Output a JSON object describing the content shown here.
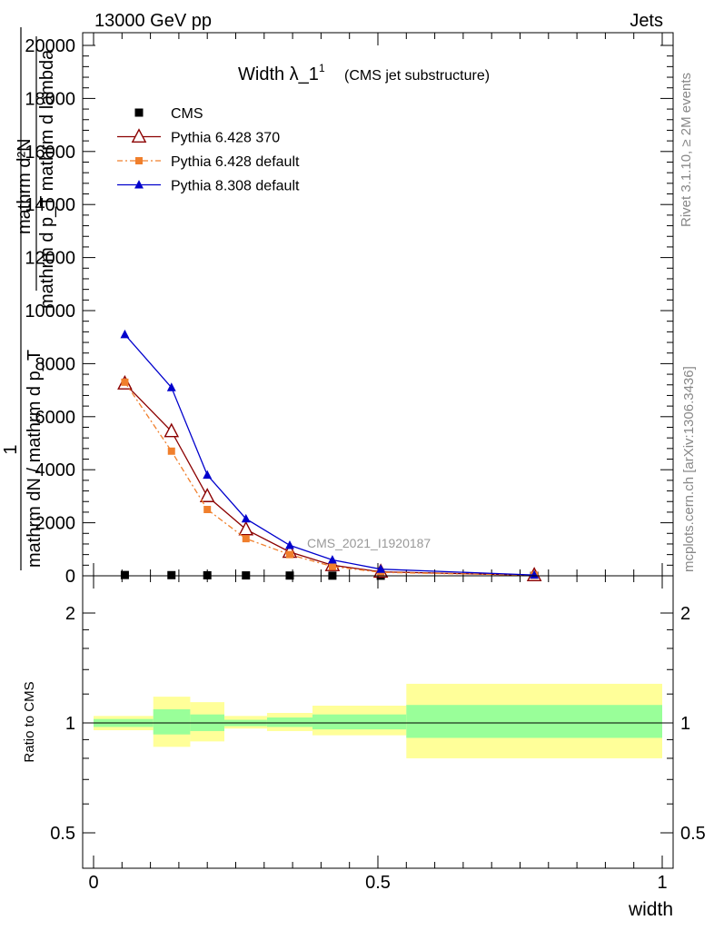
{
  "header": {
    "left": "13000 GeV pp",
    "right": "Jets"
  },
  "side_labels": {
    "rivet": "Rivet 3.1.10, ≥ 2M events",
    "mcplots": "mcplots.cern.ch [arXiv:1306.3436]"
  },
  "chart_data": [
    {
      "type": "line",
      "title": "Width λ_1",
      "title_superscript": "1",
      "subtitle": "(CMS jet substructure)",
      "ylabel_numerator": "mathrm d²N",
      "ylabel_denominator": "mathrm d p_T mathrm d lambda",
      "ylabel_prefix_numerator": "1",
      "ylabel_prefix_denominator": "mathrm dN / mathrm d p_T",
      "watermark": "CMS_2021_I1920187",
      "xlim": [
        0,
        1
      ],
      "ylim": [
        0,
        20000
      ],
      "y_ticks": [
        0,
        2000,
        4000,
        6000,
        8000,
        10000,
        12000,
        14000,
        16000,
        18000,
        20000
      ],
      "y_tick_labels": [
        "0",
        "2000",
        "4000",
        "6000",
        "8000",
        "10000",
        "12000",
        "14000",
        "16000",
        "18000",
        "20000"
      ],
      "legend_position": "top-left",
      "series": [
        {
          "name": "CMS",
          "marker": "square",
          "color": "#000000",
          "x": [
            0.055,
            0.137,
            0.2,
            0.268,
            0.345,
            0.42,
            0.505,
            0.775
          ],
          "y": [
            30,
            25,
            20,
            15,
            10,
            6,
            3,
            1
          ]
        },
        {
          "name": "Pythia 6.428 370",
          "marker": "open-triangle",
          "color": "#8b0000",
          "line": "solid",
          "x": [
            0.055,
            0.137,
            0.2,
            0.268,
            0.345,
            0.42,
            0.505,
            0.775
          ],
          "y": [
            7250,
            5450,
            3000,
            1750,
            900,
            400,
            150,
            20
          ]
        },
        {
          "name": "Pythia 6.428 default",
          "marker": "square",
          "color": "#f07f2c",
          "line": "dashdot",
          "x": [
            0.055,
            0.137,
            0.2,
            0.268,
            0.345,
            0.42,
            0.505,
            0.775
          ],
          "y": [
            7300,
            4700,
            2500,
            1400,
            800,
            350,
            130,
            20
          ]
        },
        {
          "name": "Pythia 8.308 default",
          "marker": "triangle",
          "color": "#0000cc",
          "line": "solid",
          "x": [
            0.055,
            0.137,
            0.2,
            0.268,
            0.345,
            0.42,
            0.505,
            0.775
          ],
          "y": [
            9100,
            7100,
            3800,
            2150,
            1150,
            600,
            250,
            30
          ]
        }
      ]
    },
    {
      "type": "area",
      "ylabel": "Ratio to CMS",
      "xlabel": "width",
      "xlim": [
        0,
        1
      ],
      "ylim": [
        0.4,
        2.3
      ],
      "y_scale": "log",
      "y_ticks": [
        0.5,
        1,
        2
      ],
      "y_tick_labels": [
        "0.5",
        "1",
        "2"
      ],
      "x_ticks": [
        0,
        0.5,
        1
      ],
      "x_tick_labels": [
        "0",
        "0.5",
        "1"
      ],
      "band_colors": {
        "inner": "#99ff99",
        "outer": "#ffff99"
      },
      "bins": [
        {
          "x_low": 0.0,
          "x_high": 0.105,
          "inner": [
            0.975,
            1.025
          ],
          "outer": [
            0.955,
            1.045
          ]
        },
        {
          "x_low": 0.105,
          "x_high": 0.17,
          "inner": [
            0.93,
            1.09
          ],
          "outer": [
            0.86,
            1.18
          ]
        },
        {
          "x_low": 0.17,
          "x_high": 0.23,
          "inner": [
            0.95,
            1.055
          ],
          "outer": [
            0.89,
            1.14
          ]
        },
        {
          "x_low": 0.23,
          "x_high": 0.305,
          "inner": [
            0.98,
            1.02
          ],
          "outer": [
            0.965,
            1.045
          ]
        },
        {
          "x_low": 0.305,
          "x_high": 0.385,
          "inner": [
            0.975,
            1.035
          ],
          "outer": [
            0.95,
            1.065
          ]
        },
        {
          "x_low": 0.385,
          "x_high": 0.55,
          "inner": [
            0.96,
            1.055
          ],
          "outer": [
            0.925,
            1.115
          ]
        },
        {
          "x_low": 0.55,
          "x_high": 1.0,
          "inner": [
            0.91,
            1.12
          ],
          "outer": [
            0.8,
            1.28
          ]
        }
      ]
    }
  ]
}
